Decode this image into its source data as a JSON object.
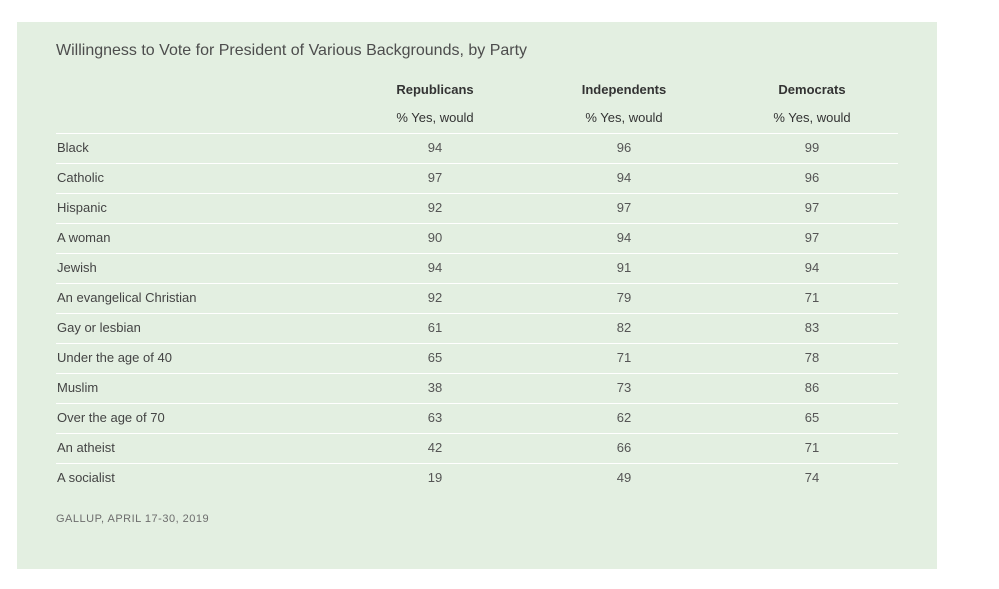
{
  "chart": {
    "title": "Willingness to Vote for President of Various Backgrounds, by Party",
    "source": "GALLUP, APRIL 17-30, 2019"
  },
  "chart_data": {
    "type": "table",
    "title": "Willingness to Vote for President of Various Backgrounds, by Party",
    "columns": [
      {
        "name": "Republicans",
        "subheader": "% Yes, would"
      },
      {
        "name": "Independents",
        "subheader": "% Yes, would"
      },
      {
        "name": "Democrats",
        "subheader": "% Yes, would"
      }
    ],
    "rows": [
      {
        "label": "Black",
        "values": [
          94,
          96,
          99
        ]
      },
      {
        "label": "Catholic",
        "values": [
          97,
          94,
          96
        ]
      },
      {
        "label": "Hispanic",
        "values": [
          92,
          97,
          97
        ]
      },
      {
        "label": "A woman",
        "values": [
          90,
          94,
          97
        ]
      },
      {
        "label": "Jewish",
        "values": [
          94,
          91,
          94
        ]
      },
      {
        "label": "An evangelical Christian",
        "values": [
          92,
          79,
          71
        ]
      },
      {
        "label": "Gay or lesbian",
        "values": [
          61,
          82,
          83
        ]
      },
      {
        "label": "Under the age of 40",
        "values": [
          65,
          71,
          78
        ]
      },
      {
        "label": "Muslim",
        "values": [
          38,
          73,
          86
        ]
      },
      {
        "label": "Over the age of 70",
        "values": [
          63,
          62,
          65
        ]
      },
      {
        "label": "An atheist",
        "values": [
          42,
          66,
          71
        ]
      },
      {
        "label": "A socialist",
        "values": [
          19,
          49,
          74
        ]
      }
    ],
    "source": "GALLUP, APRIL 17-30, 2019"
  },
  "colors": {
    "background": "#e3efe1",
    "divider": "#ffffff",
    "text": "#444444"
  }
}
